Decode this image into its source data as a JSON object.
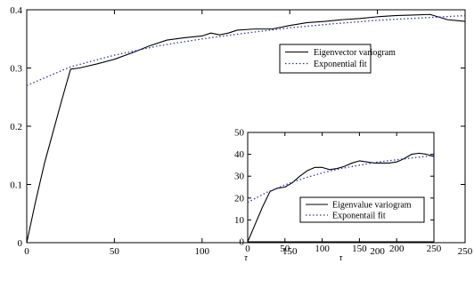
{
  "chart_data": [
    {
      "id": "main",
      "type": "line",
      "title": "",
      "xlabel": "τ",
      "ylabel": "",
      "xlim": [
        0,
        250
      ],
      "ylim": [
        0,
        0.4
      ],
      "xticks": [
        0,
        50,
        100,
        150,
        200,
        250
      ],
      "yticks": [
        0,
        0.1,
        0.2,
        0.3,
        0.4
      ],
      "xtick_labels": [
        "0",
        "50",
        "100",
        "150",
        "200",
        "250"
      ],
      "ytick_labels": [
        "0",
        "0.1",
        "0.2",
        "0.3",
        "0.4"
      ],
      "grid": false,
      "legend_position": "upper-right",
      "series": [
        {
          "name": "Eigenvector variogram",
          "style": "solid",
          "color": "#000000",
          "x": [
            0,
            5,
            10,
            15,
            20,
            25,
            30,
            40,
            50,
            60,
            70,
            80,
            90,
            100,
            105,
            110,
            115,
            120,
            130,
            140,
            150,
            160,
            170,
            180,
            190,
            200,
            210,
            220,
            230,
            240,
            250
          ],
          "y": [
            0.0,
            0.07,
            0.135,
            0.19,
            0.245,
            0.298,
            0.3,
            0.307,
            0.315,
            0.326,
            0.338,
            0.348,
            0.352,
            0.355,
            0.36,
            0.357,
            0.36,
            0.365,
            0.367,
            0.367,
            0.373,
            0.378,
            0.38,
            0.383,
            0.385,
            0.388,
            0.39,
            0.391,
            0.392,
            0.383,
            0.38
          ]
        },
        {
          "name": "Exponential fit",
          "style": "dotted",
          "color": "#3030c8",
          "x": [
            0,
            25,
            50,
            75,
            100,
            125,
            150,
            175,
            200,
            225,
            250
          ],
          "y": [
            0.27,
            0.302,
            0.322,
            0.338,
            0.35,
            0.36,
            0.369,
            0.376,
            0.382,
            0.386,
            0.39
          ]
        }
      ]
    },
    {
      "id": "inset",
      "type": "line",
      "title": "",
      "xlabel": "τ",
      "ylabel": "",
      "xlim": [
        0,
        250
      ],
      "ylim": [
        0,
        50
      ],
      "xticks": [
        0,
        50,
        100,
        150,
        200,
        250
      ],
      "yticks": [
        0,
        10,
        20,
        30,
        40,
        50
      ],
      "xtick_labels": [
        "0",
        "50",
        "100",
        "150",
        "200",
        "250"
      ],
      "ytick_labels": [
        "0",
        "10",
        "20",
        "30",
        "40",
        "50"
      ],
      "grid": false,
      "legend_position": "lower-right",
      "series": [
        {
          "name": "Eigenvalue variogram",
          "style": "solid",
          "color": "#000000",
          "x": [
            0,
            10,
            20,
            30,
            40,
            50,
            60,
            70,
            80,
            90,
            100,
            110,
            120,
            130,
            140,
            150,
            160,
            170,
            180,
            190,
            200,
            210,
            220,
            230,
            240,
            250
          ],
          "y": [
            0,
            8,
            16,
            23,
            24.5,
            25,
            27,
            30,
            32.5,
            34,
            34,
            33,
            33.5,
            34.5,
            36,
            37,
            36.5,
            36,
            36,
            36,
            36.5,
            38,
            40,
            40.5,
            40,
            39
          ]
        },
        {
          "name": "Exponentail fit",
          "style": "dotted",
          "color": "#3030c8",
          "x": [
            0,
            25,
            50,
            75,
            100,
            125,
            150,
            175,
            200,
            225,
            250
          ],
          "y": [
            18,
            22.5,
            26,
            29,
            31.5,
            33.5,
            35,
            36.5,
            37.5,
            38.5,
            39.5
          ]
        }
      ]
    }
  ]
}
